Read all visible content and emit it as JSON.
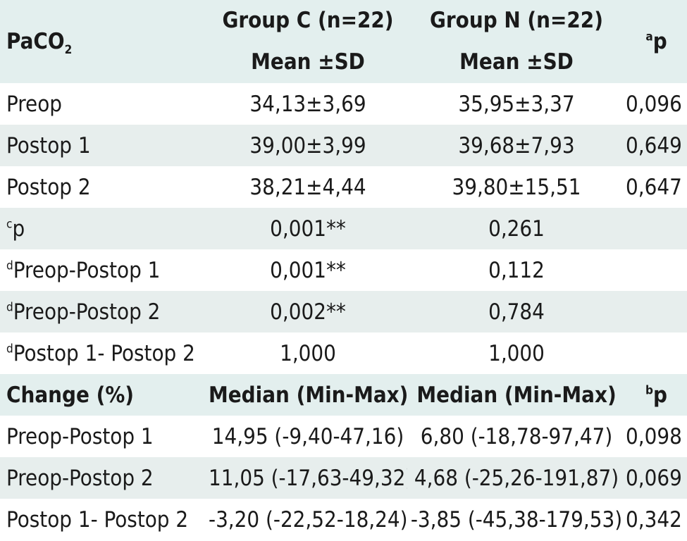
{
  "header": {
    "col1_main": "PaCO",
    "col1_sub": "2",
    "group_c_label": "Group C (n=22)",
    "group_n_label": "Group N (n=22)",
    "stat_c": "Mean ±SD",
    "stat_n": "Mean ±SD",
    "p_sup": "a",
    "p_label": "p"
  },
  "rows": [
    {
      "label": "Preop",
      "c": "34,13±3,69",
      "n": "35,95±3,37",
      "p": "0,096"
    },
    {
      "label": "Postop 1",
      "c": "39,00±3,99",
      "n": "39,68±7,93",
      "p": "0,649"
    },
    {
      "label": "Postop 2",
      "c": "38,21±4,44",
      "n": "39,80±15,51",
      "p": "0,647"
    },
    {
      "sup": "c",
      "label": "p",
      "c": "0,001**",
      "n": "0,261",
      "p": ""
    },
    {
      "sup": "d",
      "label": "Preop-Postop 1",
      "c": "0,001**",
      "n": "0,112",
      "p": ""
    },
    {
      "sup": "d",
      "label": "Preop-Postop 2",
      "c": "0,002**",
      "n": "0,784",
      "p": ""
    },
    {
      "sup": "d",
      "label": "Postop 1- Postop 2",
      "c": "1,000",
      "n": "1,000",
      "p": ""
    }
  ],
  "change_header": {
    "label": "Change (%)",
    "c": "Median (Min-Max)",
    "n": "Median (Min-Max)",
    "p_sup": "b",
    "p_label": "p"
  },
  "change_rows": [
    {
      "label": "Preop-Postop 1",
      "c": "14,95 (-9,40-47,16)",
      "n": "6,80 (-18,78-97,47)",
      "p": "0,098"
    },
    {
      "label": "Preop-Postop 2",
      "c": "11,05 (-17,63-49,32)",
      "n": "4,68 (-25,26-191,87)",
      "p": "0,069"
    },
    {
      "label": "Postop 1- Postop 2",
      "c": "-3,20 (-22,52-18,24)",
      "n": "-3,85 (-45,38-179,53)",
      "p": "0,342"
    }
  ]
}
